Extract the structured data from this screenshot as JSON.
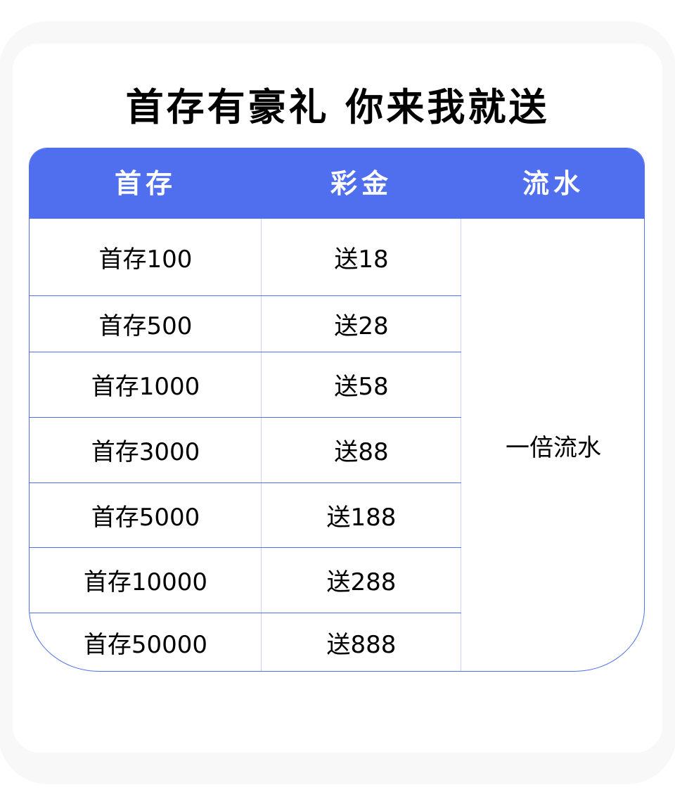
{
  "title": "首存有豪礼 你来我就送",
  "table": {
    "headers": [
      "首存",
      "彩金",
      "流水"
    ],
    "rows": [
      {
        "deposit": "首存100",
        "bonus": "送18"
      },
      {
        "deposit": "首存500",
        "bonus": "送28"
      },
      {
        "deposit": "首存1000",
        "bonus": "送58"
      },
      {
        "deposit": "首存3000",
        "bonus": "送88"
      },
      {
        "deposit": "首存5000",
        "bonus": "送188"
      },
      {
        "deposit": "首存10000",
        "bonus": "送288"
      },
      {
        "deposit": "首存50000",
        "bonus": "送888"
      }
    ],
    "turnover": "一倍流水"
  },
  "colors": {
    "accent": "#4F6FEF"
  }
}
